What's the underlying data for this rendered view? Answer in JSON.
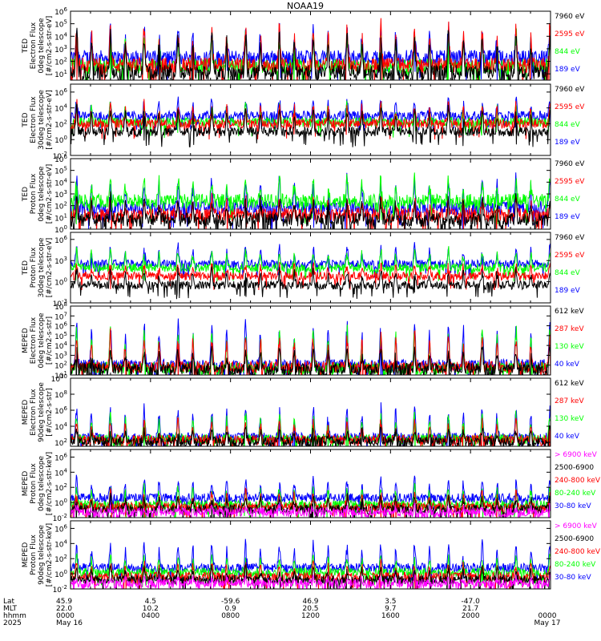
{
  "title": "NOAA19",
  "colors": {
    "black": "#000000",
    "red": "#ff0000",
    "green": "#00ff00",
    "blue": "#0000ff",
    "magenta": "#ff00ff"
  },
  "chart_data": [
    {
      "type": "line",
      "log_scale": true,
      "ylabel": [
        "TED",
        "Electron Flux",
        "0deg telescope",
        "[#/cm2-s-str-eV]"
      ],
      "yticks": [
        {
          "exp": 1,
          "label": "10^1"
        },
        {
          "exp": 2,
          "label": "10^2"
        },
        {
          "exp": 3,
          "label": "10^3"
        },
        {
          "exp": 4,
          "label": "10^4"
        },
        {
          "exp": 5,
          "label": "10^5"
        },
        {
          "exp": 6,
          "label": "10^6"
        }
      ],
      "ylim_exp": [
        0.5,
        6
      ],
      "legend": [
        {
          "label": "7960 eV",
          "color": "#000000"
        },
        {
          "label": "2595 eV",
          "color": "#ff0000"
        },
        {
          "label": "844 eV",
          "color": "#00ff00"
        },
        {
          "label": "189 eV",
          "color": "#0000ff"
        }
      ],
      "series": [
        {
          "color": "#0000ff",
          "base_exp": 2.3,
          "peak_exp": 4.8
        },
        {
          "color": "#00ff00",
          "base_exp": 1.6,
          "peak_exp": 4.4
        },
        {
          "color": "#ff0000",
          "base_exp": 1.7,
          "peak_exp": 5.0
        },
        {
          "color": "#000000",
          "base_exp": 1.1,
          "peak_exp": 4.6
        }
      ]
    },
    {
      "type": "line",
      "log_scale": true,
      "ylabel": [
        "TED",
        "Electron Flux",
        "30deg telescope",
        "[#/cm2-s-str-eV]"
      ],
      "yticks": [
        {
          "exp": -2,
          "label": "10^-2"
        },
        {
          "exp": 0,
          "label": "10^0"
        },
        {
          "exp": 2,
          "label": "10^2"
        },
        {
          "exp": 4,
          "label": "10^4"
        },
        {
          "exp": 6,
          "label": "10^6"
        }
      ],
      "ylim_exp": [
        -2,
        7
      ],
      "legend": [
        {
          "label": "7960 eV",
          "color": "#000000"
        },
        {
          "label": "2595 eV",
          "color": "#ff0000"
        },
        {
          "label": "844 eV",
          "color": "#00ff00"
        },
        {
          "label": "189 eV",
          "color": "#0000ff"
        }
      ],
      "series": [
        {
          "color": "#0000ff",
          "base_exp": 3.0,
          "peak_exp": 5.2
        },
        {
          "color": "#00ff00",
          "base_exp": 2.2,
          "peak_exp": 4.6
        },
        {
          "color": "#ff0000",
          "base_exp": 2.0,
          "peak_exp": 4.8
        },
        {
          "color": "#000000",
          "base_exp": 1.0,
          "peak_exp": 4.2
        }
      ]
    },
    {
      "type": "line",
      "log_scale": true,
      "ylabel": [
        "TED",
        "Proton Flux",
        "0deg telescope",
        "[#/cm2-s-str-eV]"
      ],
      "yticks": [
        {
          "exp": 0,
          "label": "10^0"
        },
        {
          "exp": 1,
          "label": "10^1"
        },
        {
          "exp": 2,
          "label": "10^2"
        },
        {
          "exp": 3,
          "label": "10^3"
        },
        {
          "exp": 4,
          "label": "10^4"
        },
        {
          "exp": 5,
          "label": "10^5"
        },
        {
          "exp": 6,
          "label": "10^6"
        }
      ],
      "ylim_exp": [
        0,
        6
      ],
      "legend": [
        {
          "label": "7960 eV",
          "color": "#000000"
        },
        {
          "label": "2595 eV",
          "color": "#ff0000"
        },
        {
          "label": "844 eV",
          "color": "#00ff00"
        },
        {
          "label": "189 eV",
          "color": "#0000ff"
        }
      ],
      "series": [
        {
          "color": "#0000ff",
          "base_exp": 1.8,
          "peak_exp": 4.6
        },
        {
          "color": "#00ff00",
          "base_exp": 2.4,
          "peak_exp": 4.5
        },
        {
          "color": "#ff0000",
          "base_exp": 1.2,
          "peak_exp": 2.6
        },
        {
          "color": "#000000",
          "base_exp": 0.8,
          "peak_exp": 2.8
        }
      ]
    },
    {
      "type": "line",
      "log_scale": true,
      "ylabel": [
        "TED",
        "Proton Flux",
        "30deg telescope",
        "[#/cm2-s-str-eV]"
      ],
      "yticks": [
        {
          "exp": -3,
          "label": "10^-3"
        },
        {
          "exp": 0,
          "label": "10^0"
        },
        {
          "exp": 3,
          "label": "10^3"
        },
        {
          "exp": 6,
          "label": "10^6"
        }
      ],
      "ylim_exp": [
        -3,
        7
      ],
      "legend": [
        {
          "label": "7960 eV",
          "color": "#000000"
        },
        {
          "label": "2595 eV",
          "color": "#ff0000"
        },
        {
          "label": "844 eV",
          "color": "#00ff00"
        },
        {
          "label": "189 eV",
          "color": "#0000ff"
        }
      ],
      "series": [
        {
          "color": "#0000ff",
          "base_exp": 2.5,
          "peak_exp": 5.2
        },
        {
          "color": "#00ff00",
          "base_exp": 2.0,
          "peak_exp": 4.8
        },
        {
          "color": "#ff0000",
          "base_exp": 0.8,
          "peak_exp": 2.5
        },
        {
          "color": "#000000",
          "base_exp": -0.5,
          "peak_exp": 2.0
        }
      ]
    },
    {
      "type": "line",
      "log_scale": true,
      "ylabel": [
        "MEPED",
        "Electron Flux",
        "0deg telescope",
        "[#/cm2-s-str]"
      ],
      "yticks": [
        {
          "exp": 1,
          "label": "10^1"
        },
        {
          "exp": 2,
          "label": "10^2"
        },
        {
          "exp": 3,
          "label": "10^3"
        },
        {
          "exp": 4,
          "label": "10^4"
        },
        {
          "exp": 5,
          "label": "10^5"
        },
        {
          "exp": 6,
          "label": "10^6"
        },
        {
          "exp": 7,
          "label": "10^7"
        },
        {
          "exp": 8,
          "label": "10^8"
        }
      ],
      "ylim_exp": [
        1,
        8
      ],
      "legend": [
        {
          "label": "612 keV",
          "color": "#000000"
        },
        {
          "label": "287 keV",
          "color": "#ff0000"
        },
        {
          "label": "130 keV",
          "color": "#00ff00"
        },
        {
          "label": "40 keV",
          "color": "#0000ff"
        }
      ],
      "series": [
        {
          "color": "#0000ff",
          "base_exp": 2.0,
          "peak_exp": 6.8
        },
        {
          "color": "#00ff00",
          "base_exp": 1.7,
          "peak_exp": 6.0
        },
        {
          "color": "#ff0000",
          "base_exp": 1.8,
          "peak_exp": 5.5
        },
        {
          "color": "#000000",
          "base_exp": 1.6,
          "peak_exp": 3.8
        }
      ]
    },
    {
      "type": "line",
      "log_scale": true,
      "ylabel": [
        "MEPED",
        "Electron Flux",
        "90deg telescope",
        "[#/cm2-s-str]"
      ],
      "yticks": [
        {
          "exp": 2,
          "label": "10^2"
        },
        {
          "exp": 4,
          "label": "10^4"
        },
        {
          "exp": 6,
          "label": "10^6"
        },
        {
          "exp": 8,
          "label": "10^8"
        },
        {
          "exp": 10,
          "label": "10^10"
        }
      ],
      "ylim_exp": [
        1.5,
        10
      ],
      "legend": [
        {
          "label": "612 keV",
          "color": "#000000"
        },
        {
          "label": "287 keV",
          "color": "#ff0000"
        },
        {
          "label": "130 keV",
          "color": "#00ff00"
        },
        {
          "label": "40 keV",
          "color": "#0000ff"
        }
      ],
      "series": [
        {
          "color": "#0000ff",
          "base_exp": 2.6,
          "peak_exp": 6.8
        },
        {
          "color": "#00ff00",
          "base_exp": 2.4,
          "peak_exp": 5.8
        },
        {
          "color": "#ff0000",
          "base_exp": 2.3,
          "peak_exp": 4.8
        },
        {
          "color": "#000000",
          "base_exp": 2.1,
          "peak_exp": 3.8
        }
      ]
    },
    {
      "type": "line",
      "log_scale": true,
      "ylabel": [
        "MEPED",
        "Proton Flux",
        "0deg telescope",
        "[#/cm2-s-str-keV]"
      ],
      "yticks": [
        {
          "exp": -2,
          "label": "10^-2"
        },
        {
          "exp": 0,
          "label": "10^0"
        },
        {
          "exp": 2,
          "label": "10^2"
        },
        {
          "exp": 4,
          "label": "10^4"
        },
        {
          "exp": 6,
          "label": "10^6"
        }
      ],
      "ylim_exp": [
        -2,
        7
      ],
      "legend": [
        {
          "label": "> 6900 keV",
          "color": "#ff00ff"
        },
        {
          "label": "2500-6900",
          "color": "#000000"
        },
        {
          "label": "240-800 keV",
          "color": "#ff0000"
        },
        {
          "label": "80-240 keV",
          "color": "#00ff00"
        },
        {
          "label": "30-80 keV",
          "color": "#0000ff"
        }
      ],
      "series": [
        {
          "color": "#0000ff",
          "base_exp": 0.6,
          "peak_exp": 3.4
        },
        {
          "color": "#00ff00",
          "base_exp": -0.3,
          "peak_exp": 2.4
        },
        {
          "color": "#ff0000",
          "base_exp": -0.6,
          "peak_exp": 1.6
        },
        {
          "color": "#000000",
          "base_exp": -0.9,
          "peak_exp": 0.9
        },
        {
          "color": "#ff00ff",
          "base_exp": -1.3,
          "peak_exp": -0.5
        }
      ]
    },
    {
      "type": "line",
      "log_scale": true,
      "ylabel": [
        "MEPED",
        "Proton Flux",
        "90deg telescope",
        "[#/cm2-s-str-keV]"
      ],
      "yticks": [
        {
          "exp": -2,
          "label": "10^-2"
        },
        {
          "exp": 0,
          "label": "10^0"
        },
        {
          "exp": 2,
          "label": "10^2"
        },
        {
          "exp": 4,
          "label": "10^4"
        },
        {
          "exp": 6,
          "label": "10^6"
        }
      ],
      "ylim_exp": [
        -2,
        7
      ],
      "legend": [
        {
          "label": "> 6900 keV",
          "color": "#ff00ff"
        },
        {
          "label": "2500-6900",
          "color": "#000000"
        },
        {
          "label": "240-800 keV",
          "color": "#ff0000"
        },
        {
          "label": "80-240 keV",
          "color": "#00ff00"
        },
        {
          "label": "30-80 keV",
          "color": "#0000ff"
        }
      ],
      "series": [
        {
          "color": "#0000ff",
          "base_exp": 0.8,
          "peak_exp": 4.2
        },
        {
          "color": "#00ff00",
          "base_exp": 0.2,
          "peak_exp": 2.6
        },
        {
          "color": "#ff0000",
          "base_exp": -0.4,
          "peak_exp": 1.6
        },
        {
          "color": "#000000",
          "base_exp": -0.8,
          "peak_exp": 1.0
        },
        {
          "color": "#ff00ff",
          "base_exp": -1.3,
          "peak_exp": -0.4
        }
      ]
    }
  ],
  "time_axis": {
    "row_labels": [
      "Lat",
      "MLT",
      "hhmm",
      "2025"
    ],
    "ticks": [
      {
        "hour": 0,
        "lat": "45.9",
        "mlt": "22.0",
        "hhmm": "0000",
        "date": "May 16"
      },
      {
        "hour": 4,
        "lat": "4.5",
        "mlt": "10.2",
        "hhmm": "0400",
        "date": ""
      },
      {
        "hour": 8,
        "lat": "-59.6",
        "mlt": "0.9",
        "hhmm": "0800",
        "date": ""
      },
      {
        "hour": 12,
        "lat": "46.9",
        "mlt": "20.5",
        "hhmm": "1200",
        "date": ""
      },
      {
        "hour": 16,
        "lat": "3.5",
        "mlt": "9.7",
        "hhmm": "1600",
        "date": ""
      },
      {
        "hour": 20,
        "lat": "-47.0",
        "mlt": "21.7",
        "hhmm": "2000",
        "date": ""
      },
      {
        "hour": 24,
        "lat": "",
        "mlt": "",
        "hhmm": "0000",
        "date": "May 17"
      }
    ]
  }
}
